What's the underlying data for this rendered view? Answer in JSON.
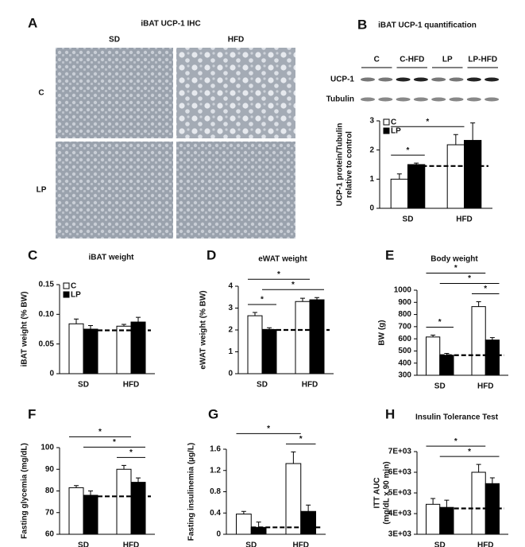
{
  "chart_data": [
    {
      "type": "micrograph",
      "panel": "A",
      "title": "iBAT UCP-1 IHC",
      "columns": [
        "SD",
        "HFD"
      ],
      "rows": [
        "C",
        "LP"
      ]
    },
    {
      "type": "bar",
      "panel": "B",
      "title": "iBAT UCP-1 quantification",
      "blot": {
        "lanes": [
          "C",
          "C-HFD",
          "LP",
          "LP-HFD"
        ],
        "rows": [
          "UCP-1",
          "Tubulin"
        ]
      },
      "ylabel": [
        "UCP-1 protein/Tubulin",
        "relative to control"
      ],
      "categories": [
        "SD",
        "HFD"
      ],
      "series": [
        {
          "name": "C",
          "color": "#ffffff",
          "values": [
            1.0,
            2.18
          ],
          "errors": [
            0.18,
            0.35
          ]
        },
        {
          "name": "LP",
          "color": "#000000",
          "values": [
            1.5,
            2.33
          ],
          "errors": [
            0.05,
            0.6
          ]
        }
      ],
      "ylim": [
        0,
        3
      ],
      "yticks": [
        0,
        1,
        2,
        3
      ],
      "legend": "upper left",
      "reference_line": 1.45,
      "significance": [
        {
          "label": "*",
          "between": [
            [
              0,
              0
            ],
            [
              1,
              0
            ]
          ]
        },
        {
          "label": "*",
          "between": [
            [
              0,
              0
            ],
            [
              0,
              1
            ]
          ]
        }
      ]
    },
    {
      "type": "bar",
      "panel": "C",
      "title": "iBAT weight",
      "ylabel": [
        "iBAT weight (% BW)"
      ],
      "categories": [
        "SD",
        "HFD"
      ],
      "series": [
        {
          "name": "C",
          "color": "#ffffff",
          "values": [
            0.084,
            0.08
          ],
          "errors": [
            0.008,
            0.003
          ]
        },
        {
          "name": "LP",
          "color": "#000000",
          "values": [
            0.075,
            0.087
          ],
          "errors": [
            0.006,
            0.008
          ]
        }
      ],
      "ylim": [
        0,
        0.15
      ],
      "yticks": [
        0,
        0.05,
        {
          "value": 0.1,
          "label": "0.10"
        },
        0.15
      ],
      "legend": "upper left",
      "reference_line": 0.073,
      "significance": []
    },
    {
      "type": "bar",
      "panel": "D",
      "title": "eWAT weight",
      "ylabel": [
        "eWAT weight (% BW)"
      ],
      "categories": [
        "SD",
        "HFD"
      ],
      "series": [
        {
          "name": "C",
          "color": "#ffffff",
          "values": [
            2.65,
            3.3
          ],
          "errors": [
            0.15,
            0.15
          ]
        },
        {
          "name": "LP",
          "color": "#000000",
          "values": [
            2.02,
            3.38
          ],
          "errors": [
            0.08,
            0.1
          ]
        }
      ],
      "ylim": [
        0,
        4
      ],
      "yticks": [
        0,
        1,
        2,
        3,
        4
      ],
      "reference_line": 2.0,
      "significance": [
        {
          "label": "*",
          "between": [
            [
              0,
              0
            ],
            [
              1,
              0
            ]
          ]
        },
        {
          "label": "*",
          "between": [
            [
              1,
              0
            ],
            [
              1,
              1
            ]
          ]
        },
        {
          "label": "*",
          "between": [
            [
              0,
              0
            ],
            [
              0,
              1
            ]
          ]
        }
      ]
    },
    {
      "type": "bar",
      "panel": "E",
      "title": "Body weight",
      "ylabel": [
        "BW (g)"
      ],
      "categories": [
        "SD",
        "HFD"
      ],
      "series": [
        {
          "name": "C",
          "color": "#ffffff",
          "values": [
            615,
            865
          ],
          "errors": [
            15,
            40
          ]
        },
        {
          "name": "LP",
          "color": "#000000",
          "values": [
            465,
            590
          ],
          "errors": [
            15,
            20
          ]
        }
      ],
      "ylim": [
        300,
        1000
      ],
      "yticks": [
        300,
        400,
        500,
        600,
        700,
        800,
        900,
        1000
      ],
      "reference_line": 465,
      "significance": [
        {
          "label": "*",
          "between": [
            [
              0,
              0
            ],
            [
              1,
              0
            ]
          ]
        },
        {
          "label": "*",
          "between": [
            [
              0,
              1
            ],
            [
              1,
              1
            ]
          ]
        },
        {
          "label": "*",
          "between": [
            [
              1,
              0
            ],
            [
              1,
              1
            ]
          ]
        },
        {
          "label": "*",
          "between": [
            [
              0,
              0
            ],
            [
              0,
              1
            ]
          ]
        }
      ]
    },
    {
      "type": "bar",
      "panel": "F",
      "ylabel": [
        "Fasting glycemia (mg/dL)"
      ],
      "categories": [
        "SD",
        "HFD"
      ],
      "series": [
        {
          "name": "C",
          "color": "#ffffff",
          "values": [
            81.5,
            90
          ],
          "errors": [
            1,
            1.8
          ]
        },
        {
          "name": "LP",
          "color": "#000000",
          "values": [
            78,
            84
          ],
          "errors": [
            2,
            2
          ]
        }
      ],
      "ylim": [
        60,
        100
      ],
      "yticks": [
        60,
        70,
        80,
        90,
        100
      ],
      "reference_line": 77.5,
      "significance": [
        {
          "label": "*",
          "between": [
            [
              0,
              1
            ],
            [
              1,
              1
            ]
          ]
        },
        {
          "label": "*",
          "between": [
            [
              1,
              0
            ],
            [
              1,
              1
            ]
          ]
        },
        {
          "label": "*",
          "between": [
            [
              0,
              0
            ],
            [
              0,
              1
            ]
          ]
        }
      ]
    },
    {
      "type": "bar",
      "panel": "G",
      "ylabel": [
        "Fasting insulinemia (µg/L)"
      ],
      "categories": [
        "SD",
        "HFD"
      ],
      "series": [
        {
          "name": "C",
          "color": "#ffffff",
          "values": [
            0.38,
            1.33
          ],
          "errors": [
            0.05,
            0.22
          ]
        },
        {
          "name": "LP",
          "color": "#000000",
          "values": [
            0.13,
            0.43
          ],
          "errors": [
            0.1,
            0.12
          ]
        }
      ],
      "ylim": [
        0,
        1.6
      ],
      "yticks": [
        0,
        0.4,
        0.8,
        1.2,
        1.6
      ],
      "reference_line": 0.13,
      "significance": [
        {
          "label": "*",
          "between": [
            [
              0,
              1
            ],
            [
              1,
              1
            ]
          ]
        },
        {
          "label": "*",
          "between": [
            [
              0,
              0
            ],
            [
              0,
              1
            ]
          ]
        }
      ]
    },
    {
      "type": "bar",
      "panel": "H",
      "title": "Insulin Tolerance Test",
      "ylabel": [
        "ITT AUC",
        "(mg/dL x 90 min)"
      ],
      "categories": [
        "SD",
        "HFD"
      ],
      "series": [
        {
          "name": "C",
          "color": "#ffffff",
          "values": [
            4450,
            6000
          ],
          "errors": [
            280,
            380
          ]
        },
        {
          "name": "LP",
          "color": "#000000",
          "values": [
            4300,
            5450
          ],
          "errors": [
            350,
            280
          ]
        }
      ],
      "ylim": [
        3000,
        7000
      ],
      "yticks": [
        {
          "value": 3000,
          "label": "3E+03"
        },
        {
          "value": 4000,
          "label": "4E+03"
        },
        {
          "value": 5000,
          "label": "5E+03"
        },
        {
          "value": 6000,
          "label": "6E+03"
        },
        {
          "value": 7000,
          "label": "7E+03"
        }
      ],
      "reference_line": 4250,
      "significance": [
        {
          "label": "*",
          "between": [
            [
              1,
              0
            ],
            [
              1,
              1
            ]
          ]
        },
        {
          "label": "*",
          "between": [
            [
              0,
              0
            ],
            [
              0,
              1
            ]
          ]
        }
      ]
    }
  ]
}
